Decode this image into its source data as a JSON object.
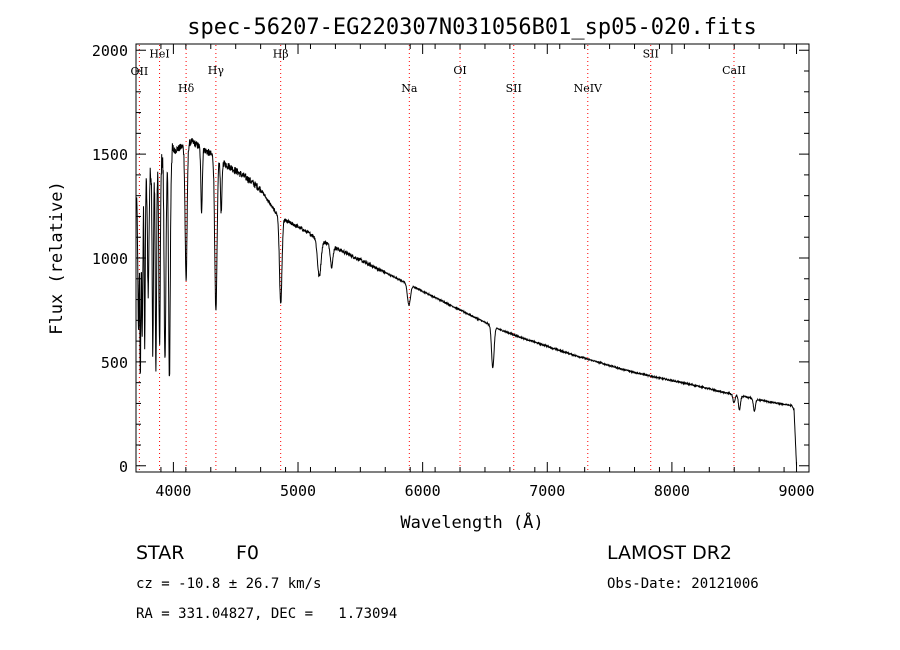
{
  "chart_data": {
    "type": "line",
    "title": "spec-56207-EG220307N031056B01_sp05-020.fits",
    "xlabel": "Wavelength (Å)",
    "ylabel": "Flux (relative)",
    "xlim": [
      3700,
      9100
    ],
    "ylim": [
      -30,
      2030
    ],
    "x_ticks": [
      4000,
      5000,
      6000,
      7000,
      8000,
      9000
    ],
    "y_ticks": [
      0,
      500,
      1000,
      1500,
      2000
    ],
    "grid": false,
    "line_color": "#000000",
    "marker_color": "#ff0000",
    "line_markers": [
      {
        "label": "OII",
        "x": 3727,
        "label_y": 1880
      },
      {
        "label": "HeI",
        "x": 3889,
        "label_y": 1965
      },
      {
        "label": "Hδ",
        "x": 4102,
        "label_y": 1800
      },
      {
        "label": "Hγ",
        "x": 4341,
        "label_y": 1885
      },
      {
        "label": "Hβ",
        "x": 4861,
        "label_y": 1965
      },
      {
        "label": "Na",
        "x": 5893,
        "label_y": 1800
      },
      {
        "label": "OI",
        "x": 6300,
        "label_y": 1885
      },
      {
        "label": "SII",
        "x": 6731,
        "label_y": 1800
      },
      {
        "label": "NeIV",
        "x": 7325,
        "label_y": 1800
      },
      {
        "label": "SII",
        "x": 7830,
        "label_y": 1965
      },
      {
        "label": "CaII",
        "x": 8498,
        "label_y": 1885
      }
    ],
    "series": [
      {
        "continuum": [
          [
            3700,
            1250
          ],
          [
            3760,
            1350
          ],
          [
            3850,
            1450
          ],
          [
            3950,
            1500
          ],
          [
            4050,
            1530
          ],
          [
            4150,
            1560
          ],
          [
            4250,
            1520
          ],
          [
            4400,
            1460
          ],
          [
            4500,
            1420
          ],
          [
            4600,
            1380
          ],
          [
            4700,
            1330
          ],
          [
            4820,
            1220
          ],
          [
            4900,
            1180
          ],
          [
            5000,
            1150
          ],
          [
            5200,
            1080
          ],
          [
            5400,
            1020
          ],
          [
            5600,
            960
          ],
          [
            5800,
            900
          ],
          [
            6000,
            840
          ],
          [
            6200,
            780
          ],
          [
            6400,
            720
          ],
          [
            6600,
            660
          ],
          [
            6800,
            615
          ],
          [
            7000,
            575
          ],
          [
            7200,
            535
          ],
          [
            7400,
            500
          ],
          [
            7600,
            465
          ],
          [
            7800,
            435
          ],
          [
            8000,
            410
          ],
          [
            8200,
            385
          ],
          [
            8400,
            355
          ],
          [
            8600,
            330
          ],
          [
            8800,
            305
          ],
          [
            8960,
            290
          ],
          [
            8980,
            270
          ],
          [
            9000,
            0
          ]
        ],
        "absorption_lines": [
          [
            3720,
            650,
            5
          ],
          [
            3735,
            900,
            4
          ],
          [
            3750,
            700,
            5
          ],
          [
            3770,
            800,
            4
          ],
          [
            3798,
            550,
            6
          ],
          [
            3835,
            900,
            5
          ],
          [
            3860,
            1000,
            5
          ],
          [
            3889,
            900,
            6
          ],
          [
            3933,
            1000,
            7
          ],
          [
            3968,
            1080,
            7
          ],
          [
            4102,
            650,
            8
          ],
          [
            4226,
            300,
            6
          ],
          [
            4341,
            750,
            9
          ],
          [
            4384,
            250,
            6
          ],
          [
            4861,
            420,
            10
          ],
          [
            5170,
            180,
            14
          ],
          [
            5270,
            100,
            10
          ],
          [
            5890,
            100,
            12
          ],
          [
            6563,
            200,
            10
          ],
          [
            8498,
            40,
            8
          ],
          [
            8542,
            70,
            8
          ],
          [
            8662,
            60,
            8
          ]
        ]
      }
    ]
  },
  "info": {
    "object_class": "STAR",
    "subclass": "F0",
    "survey": "LAMOST DR2",
    "redshift": "cz = -10.8 ± 26.7 km/s",
    "obs_date": "Obs-Date: 20121006",
    "coords": "RA = 331.04827, DEC =   1.73094"
  }
}
